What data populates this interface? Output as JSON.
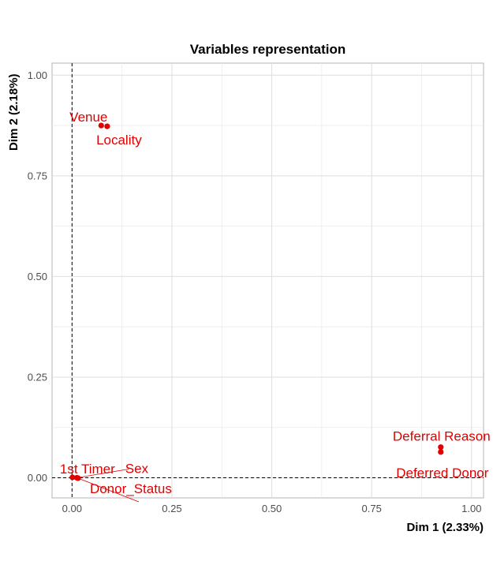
{
  "chart_data": {
    "type": "scatter",
    "title": "Variables representation",
    "xlabel": "Dim 1 (2.33%)",
    "ylabel": "Dim 2 (2.18%)",
    "xlim": [
      -0.05,
      1.03
    ],
    "ylim": [
      -0.05,
      1.03
    ],
    "x_ticks": [
      {
        "value": 0.0,
        "label": "0.00"
      },
      {
        "value": 0.25,
        "label": "0.25"
      },
      {
        "value": 0.5,
        "label": "0.50"
      },
      {
        "value": 0.75,
        "label": "0.75"
      },
      {
        "value": 1.0,
        "label": "1.00"
      }
    ],
    "y_ticks": [
      {
        "value": 0.0,
        "label": "0.00"
      },
      {
        "value": 0.25,
        "label": "0.25"
      },
      {
        "value": 0.5,
        "label": "0.50"
      },
      {
        "value": 0.75,
        "label": "0.75"
      },
      {
        "value": 1.0,
        "label": "1.00"
      }
    ],
    "grid": true,
    "reference_lines": {
      "x": 0,
      "y": 0,
      "style": "dashed"
    },
    "point_color": "#e00000",
    "points": [
      {
        "label": "Venue",
        "x": 0.073,
        "y": 0.875
      },
      {
        "label": "Locality",
        "x": 0.088,
        "y": 0.873
      },
      {
        "label": "Deferral Reason",
        "x": 0.923,
        "y": 0.076
      },
      {
        "label": "Deferred Donor",
        "x": 0.923,
        "y": 0.064
      },
      {
        "label": "1st Timer",
        "x": 0.001,
        "y": 0.001
      },
      {
        "label": "Sex",
        "x": 0.012,
        "y": 0.0
      },
      {
        "label": "Donor_Status",
        "x": 0.015,
        "y": -0.001
      }
    ]
  }
}
